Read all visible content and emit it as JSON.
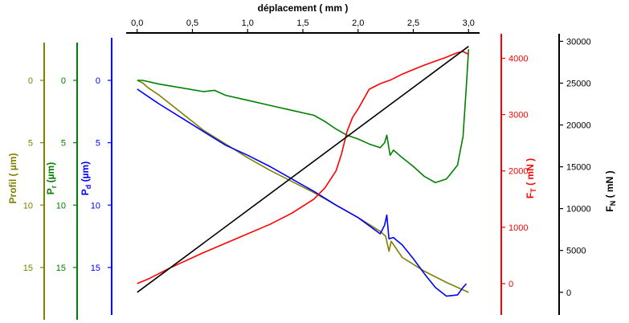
{
  "chart_data": {
    "type": "line",
    "x_axis": {
      "label": "déplacement ( mm )",
      "range": [
        -0.1,
        3.1
      ],
      "ticks": [
        "0,0",
        "0,5",
        "1,0",
        "1,5",
        "2,0",
        "2,5",
        "3,0"
      ],
      "tick_values": [
        0,
        0.5,
        1.0,
        1.5,
        2.0,
        2.5,
        3.0
      ],
      "color": "#000000"
    },
    "y_axes": [
      {
        "id": "profil",
        "label_main": "Profil ( µm)",
        "label_sub": "",
        "label_tail": "",
        "color": "#808000",
        "inverted": true,
        "range": [
          -3.8,
          19
        ],
        "ticks": [
          "0",
          "5",
          "10",
          "15"
        ],
        "tick_values": [
          0,
          5,
          10,
          15
        ]
      },
      {
        "id": "pr",
        "label_main": "P",
        "label_sub": "r",
        "label_tail": " (µm)",
        "color": "#008000",
        "inverted": true,
        "range": [
          -3.8,
          19
        ],
        "ticks": [
          "0",
          "5",
          "10",
          "15"
        ],
        "tick_values": [
          0,
          5,
          10,
          15
        ]
      },
      {
        "id": "pd",
        "label_main": "P",
        "label_sub": "d",
        "label_tail": " (µm)",
        "color": "#0000ff",
        "inverted": true,
        "range": [
          -3.8,
          19
        ],
        "ticks": [
          "0",
          "5",
          "10",
          "15"
        ],
        "tick_values": [
          0,
          5,
          10,
          15
        ]
      },
      {
        "id": "ft",
        "label_main": "F",
        "label_sub": "T",
        "label_tail": " ( mN )",
        "color": "#ff0000",
        "inverted": false,
        "range": [
          -600,
          4450
        ],
        "ticks": [
          "0",
          "1000",
          "2000",
          "3000",
          "4000"
        ],
        "tick_values": [
          0,
          1000,
          2000,
          3000,
          4000
        ]
      },
      {
        "id": "fn",
        "label_main": "F",
        "label_sub": "N",
        "label_tail": " ( mN )",
        "color": "#000000",
        "inverted": false,
        "range": [
          -3000,
          31000
        ],
        "ticks": [
          "0",
          "5000",
          "10000",
          "15000",
          "20000",
          "25000",
          "30000"
        ],
        "tick_values": [
          0,
          5000,
          10000,
          15000,
          20000,
          25000,
          30000
        ]
      }
    ],
    "series": [
      {
        "axis": "profil",
        "color": "#808000",
        "x": [
          0.0,
          0.05,
          0.1,
          0.2,
          0.4,
          0.6,
          0.8,
          1.0,
          1.2,
          1.4,
          1.6,
          1.8,
          2.0,
          2.2,
          2.25,
          2.28,
          2.3,
          2.4,
          2.6,
          2.8,
          3.0
        ],
        "y": [
          0.0,
          0.2,
          0.6,
          1.2,
          2.6,
          4.0,
          5.1,
          6.2,
          7.2,
          8.1,
          9.0,
          10.0,
          11.0,
          12.1,
          12.5,
          13.7,
          12.9,
          14.2,
          15.3,
          16.2,
          17.0
        ]
      },
      {
        "axis": "pr",
        "color": "#008000",
        "x": [
          0.0,
          0.05,
          0.2,
          0.4,
          0.6,
          0.7,
          0.8,
          1.0,
          1.2,
          1.4,
          1.6,
          1.7,
          1.8,
          1.9,
          2.0,
          2.1,
          2.2,
          2.24,
          2.26,
          2.29,
          2.32,
          2.4,
          2.5,
          2.6,
          2.7,
          2.8,
          2.9,
          2.95,
          2.98,
          3.0
        ],
        "y": [
          0.0,
          0.0,
          0.3,
          0.6,
          0.9,
          0.8,
          1.2,
          1.6,
          2.0,
          2.4,
          2.8,
          3.3,
          3.9,
          4.4,
          4.7,
          5.1,
          5.4,
          5.0,
          4.4,
          6.0,
          5.6,
          6.2,
          6.9,
          7.7,
          8.2,
          7.9,
          6.8,
          4.5,
          0.5,
          -2.5
        ]
      },
      {
        "axis": "pd",
        "color": "#0000ff",
        "x": [
          0.0,
          0.1,
          0.2,
          0.4,
          0.6,
          0.8,
          1.0,
          1.2,
          1.4,
          1.6,
          1.8,
          2.0,
          2.2,
          2.24,
          2.26,
          2.28,
          2.32,
          2.36,
          2.4,
          2.5,
          2.6,
          2.7,
          2.8,
          2.9,
          2.95,
          2.98
        ],
        "y": [
          0.7,
          1.3,
          1.9,
          3.0,
          4.1,
          5.2,
          6.0,
          6.9,
          7.9,
          8.9,
          10.0,
          11.0,
          12.3,
          11.6,
          10.8,
          12.7,
          12.6,
          12.9,
          13.2,
          14.3,
          15.5,
          16.6,
          17.3,
          17.2,
          16.6,
          16.3
        ]
      },
      {
        "axis": "ft",
        "color": "#ff0000",
        "x": [
          0.0,
          0.1,
          0.3,
          0.6,
          0.9,
          1.2,
          1.4,
          1.6,
          1.7,
          1.8,
          1.85,
          1.9,
          1.95,
          2.0,
          2.1,
          2.2,
          2.3,
          2.4,
          2.6,
          2.8,
          2.9,
          2.95,
          3.0
        ],
        "y": [
          0,
          80,
          280,
          550,
          800,
          1050,
          1250,
          1500,
          1700,
          2000,
          2300,
          2700,
          2950,
          3100,
          3450,
          3550,
          3620,
          3720,
          3880,
          4020,
          4100,
          4120,
          4070
        ]
      },
      {
        "axis": "fn",
        "color": "#000000",
        "x": [
          0.0,
          3.0
        ],
        "y": [
          0,
          29400
        ]
      }
    ]
  }
}
